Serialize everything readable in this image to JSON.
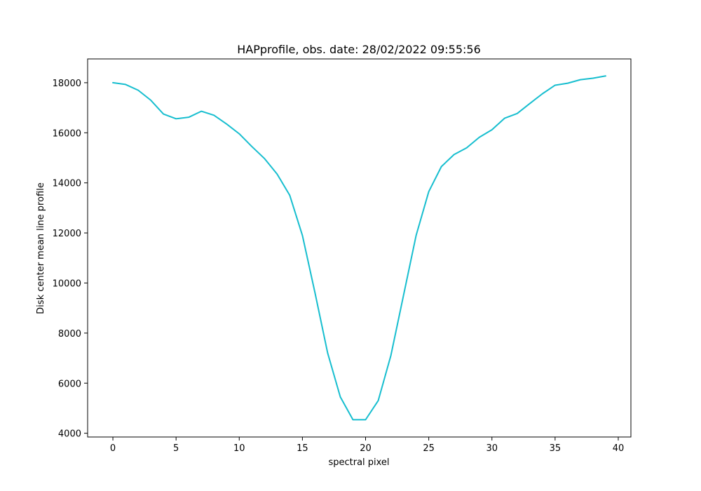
{
  "chart_data": {
    "type": "line",
    "title": "HAPprofile, obs. date: 28/02/2022 09:55:56",
    "xlabel": "spectral pixel",
    "ylabel": "Disk center mean line profile",
    "xlim": [
      -2,
      41
    ],
    "ylim": [
      3850,
      18950
    ],
    "x_ticks": [
      0,
      5,
      10,
      15,
      20,
      25,
      30,
      35,
      40
    ],
    "y_ticks": [
      4000,
      6000,
      8000,
      10000,
      12000,
      14000,
      16000,
      18000
    ],
    "grid": false,
    "series": [
      {
        "color": "#17becf",
        "x": [
          0,
          1,
          2,
          3,
          4,
          5,
          6,
          7,
          8,
          9,
          10,
          11,
          12,
          13,
          14,
          15,
          16,
          17,
          18,
          19,
          20,
          21,
          22,
          23,
          24,
          25,
          26,
          27,
          28,
          29,
          30,
          31,
          32,
          33,
          34,
          35,
          36,
          37,
          38,
          39
        ],
        "y": [
          18000,
          17930,
          17700,
          17300,
          16750,
          16560,
          16620,
          16860,
          16700,
          16350,
          15960,
          15450,
          14970,
          14350,
          13500,
          11900,
          9600,
          7200,
          5450,
          4540,
          4540,
          5300,
          7100,
          9500,
          11900,
          13650,
          14650,
          15130,
          15400,
          15820,
          16120,
          16580,
          16770,
          17170,
          17560,
          17900,
          17980,
          18120,
          18180,
          18270
        ]
      }
    ]
  }
}
